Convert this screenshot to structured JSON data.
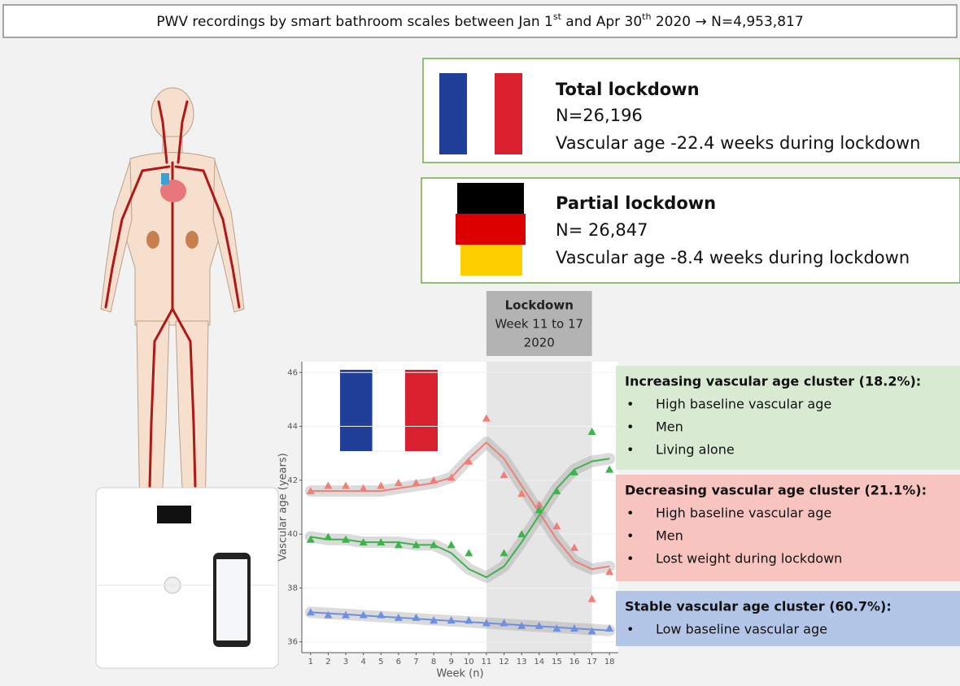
{
  "header": {
    "parts": [
      "PWV recordings by smart bathroom scales between Jan 1",
      "st",
      " and Apr 30",
      "th",
      " 2020 → N=4,953,817"
    ]
  },
  "countries": [
    {
      "title": "Total lockdown",
      "n": "N=26,196",
      "effect": "Vascular age -22.4 weeks during lockdown"
    },
    {
      "title": "Partial lockdown",
      "n": "N= 26,847",
      "effect": "Vascular age -8.4 weeks during lockdown"
    }
  ],
  "lockdown": {
    "label": "Lockdown",
    "period": "Week 11 to 17",
    "year": "2020"
  },
  "chart_data": {
    "type": "line",
    "x_label": "Week (n)",
    "y_label": "Vascular age (years)",
    "x": [
      1,
      2,
      3,
      4,
      5,
      6,
      7,
      8,
      9,
      10,
      11,
      12,
      13,
      14,
      15,
      16,
      17,
      18
    ],
    "xlim": [
      0.5,
      18.5
    ],
    "ylim": [
      35.6,
      46.4
    ],
    "xticks": [
      1,
      2,
      3,
      4,
      5,
      6,
      7,
      8,
      9,
      10,
      11,
      12,
      13,
      14,
      15,
      16,
      17,
      18
    ],
    "yticks": [
      36,
      38,
      40,
      42,
      44,
      46
    ],
    "shaded_x": [
      11,
      17
    ],
    "series": [
      {
        "color": "#f07f78",
        "values": [
          41.6,
          41.8,
          41.8,
          41.7,
          41.8,
          41.9,
          41.9,
          42.0,
          42.1,
          42.7,
          44.3,
          42.2,
          41.5,
          41.1,
          40.3,
          39.5,
          37.6,
          38.6
        ],
        "trend": [
          41.6,
          41.6,
          41.6,
          41.6,
          41.6,
          41.7,
          41.8,
          41.9,
          42.1,
          42.8,
          43.4,
          42.8,
          41.8,
          40.8,
          39.8,
          39.0,
          38.7,
          38.8
        ]
      },
      {
        "color": "#3cb44b",
        "values": [
          39.8,
          39.9,
          39.8,
          39.7,
          39.7,
          39.6,
          39.6,
          39.6,
          39.6,
          39.3,
          36.7,
          39.3,
          40.0,
          40.9,
          41.6,
          42.3,
          43.8,
          42.4
        ],
        "trend": [
          39.9,
          39.8,
          39.8,
          39.7,
          39.7,
          39.7,
          39.6,
          39.6,
          39.3,
          38.7,
          38.4,
          38.8,
          39.7,
          40.7,
          41.7,
          42.4,
          42.7,
          42.8
        ]
      },
      {
        "color": "#6f8fe0",
        "values": [
          37.1,
          37.0,
          37.0,
          37.0,
          37.0,
          36.9,
          36.9,
          36.8,
          36.8,
          36.8,
          36.7,
          36.7,
          36.6,
          36.6,
          36.5,
          36.5,
          36.4,
          36.5
        ],
        "trend": [
          37.1,
          37.06,
          37.02,
          36.98,
          36.94,
          36.9,
          36.86,
          36.82,
          36.78,
          36.74,
          36.7,
          36.66,
          36.62,
          36.58,
          36.54,
          36.5,
          36.46,
          36.42
        ]
      }
    ]
  },
  "clusters": [
    {
      "title": "Increasing vascular age cluster (18.2%):",
      "color": "#d9ead3",
      "items": [
        "High baseline vascular age",
        "Men",
        "Living alone"
      ]
    },
    {
      "title": "Decreasing vascular age cluster (21.1%):",
      "color": "#f8c4c0",
      "items": [
        "High baseline vascular age",
        "Men",
        "Lost weight during lockdown"
      ]
    },
    {
      "title": "Stable vascular age cluster (60.7%):",
      "color": "#b4c6e7",
      "items": [
        "Low baseline vascular age"
      ]
    }
  ]
}
